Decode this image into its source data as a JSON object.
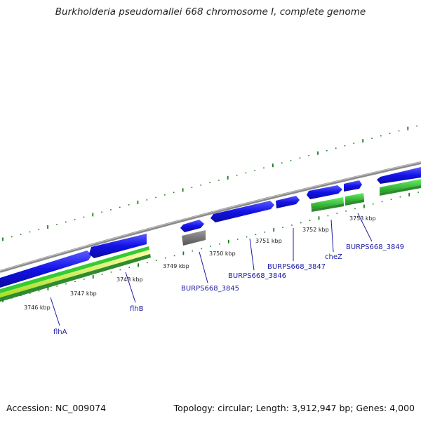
{
  "title": "Burkholderia pseudomallei 668 chromosome I, complete genome",
  "footer": {
    "accession": "Accession: NC_009074",
    "stats": "Topology: circular; Length: 3,912,947 bp; Genes: 4,000"
  },
  "colors": {
    "backbone": "#8a8a8a",
    "gene_blue": "#1010e6",
    "gene_gray": "#7a7a7a",
    "gene_green": "#33cc33",
    "gene_yellowgreen": "#ccff33",
    "gene_darkgreen": "#2e8b2e",
    "tick_green": "#1e7a1e",
    "label_blue": "#1a1aa6"
  },
  "scale_ticks": [
    "3746 kbp",
    "3747 kbp",
    "3748 kbp",
    "3749 kbp",
    "3750 kbp",
    "3751 kbp",
    "3752 kbp",
    "3753 kbp"
  ],
  "gene_labels": [
    "flhA",
    "flhB",
    "BURPS668_3845",
    "BURPS668_3846",
    "BURPS668_3847",
    "cheZ",
    "BURPS668_3849"
  ]
}
